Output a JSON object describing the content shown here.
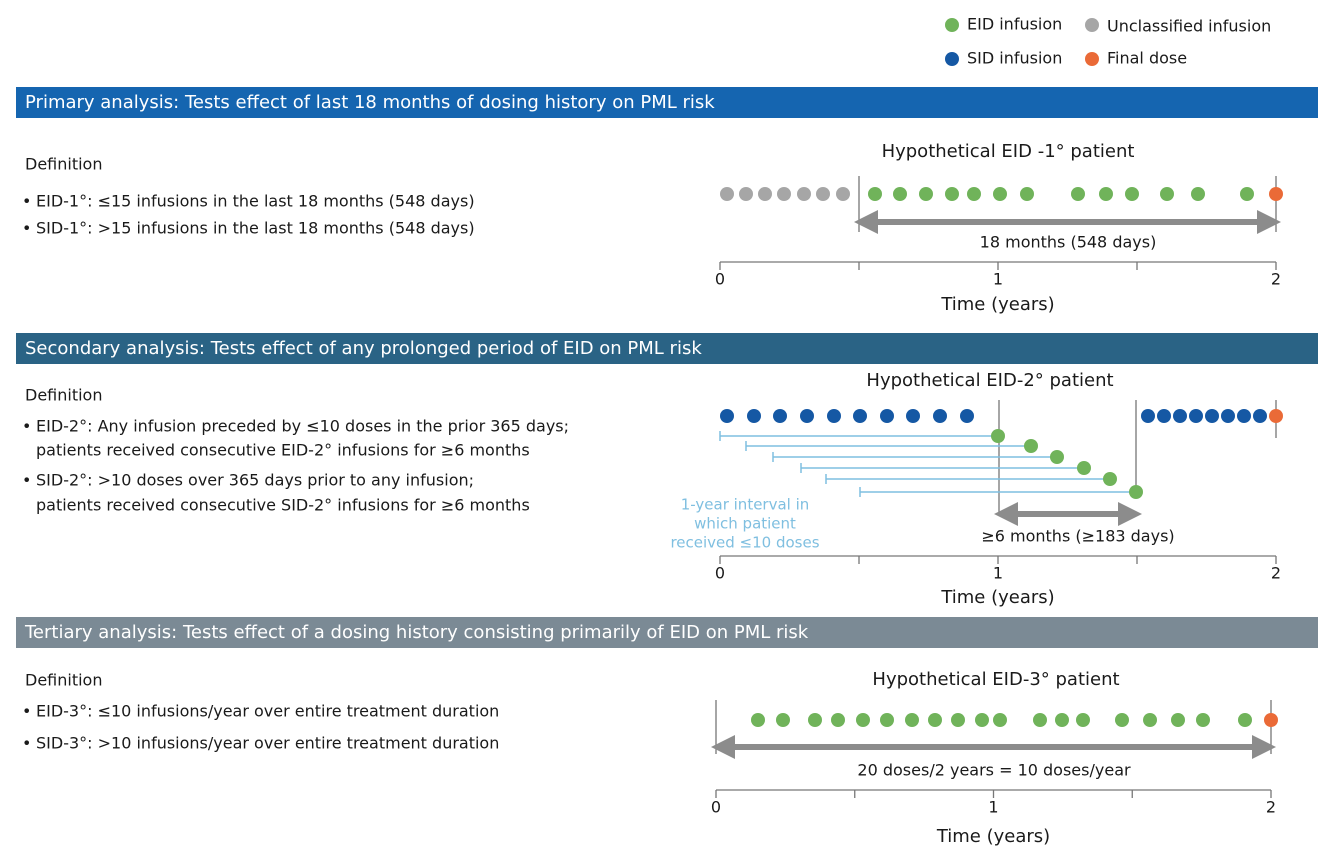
{
  "legend": {
    "items": [
      "EID infusion",
      "Unclassified infusion",
      "SID infusion",
      "Final dose"
    ]
  },
  "sections": [
    {
      "header": "Primary analysis: Tests effect of last 18 months of dosing history on PML risk",
      "definition_label": "Definition",
      "bullets": [
        [
          "EID-1°: ≤15 infusions in the last 18 months (548 days)"
        ],
        [
          "SID-1°: >15 infusions in the last 18 months (548 days)"
        ]
      ],
      "diagram": {
        "title": "Hypothetical EID -1° patient",
        "arrow_label": "18 months (548 days)",
        "axis_ticks": [
          "0",
          "1",
          "2"
        ],
        "axis_label": "Time (years)"
      }
    },
    {
      "header": "Secondary analysis: Tests effect of any prolonged period of EID on PML risk",
      "definition_label": "Definition",
      "bullets": [
        [
          "EID-2°: Any infusion preceded by ≤10 doses in the prior 365 days;",
          "patients received consecutive EID-2° infusions for ≥6 months"
        ],
        [
          "SID-2°: >10 doses over 365 days prior to any infusion;",
          "patients received consecutive SID-2° infusions for ≥6 months"
        ]
      ],
      "diagram": {
        "title": "Hypothetical EID-2° patient",
        "arrow_label": "≥6 months (≥183 days)",
        "axis_ticks": [
          "0",
          "1",
          "2"
        ],
        "axis_label": "Time (years)",
        "annotation": [
          "1-year interval in",
          "which patient",
          "received ≤10 doses"
        ]
      }
    },
    {
      "header": "Tertiary analysis: Tests effect of a dosing history consisting primarily of EID on PML risk",
      "definition_label": "Definition",
      "bullets": [
        [
          "EID-3°: ≤10 infusions/year over entire treatment duration"
        ],
        [
          "SID-3°: >10 infusions/year over entire treatment duration"
        ]
      ],
      "diagram": {
        "title": "Hypothetical EID-3° patient",
        "arrow_label": "20 doses/2 years = 10 doses/year",
        "axis_ticks": [
          "0",
          "1",
          "2"
        ],
        "axis_label": "Time (years)"
      }
    }
  ]
}
